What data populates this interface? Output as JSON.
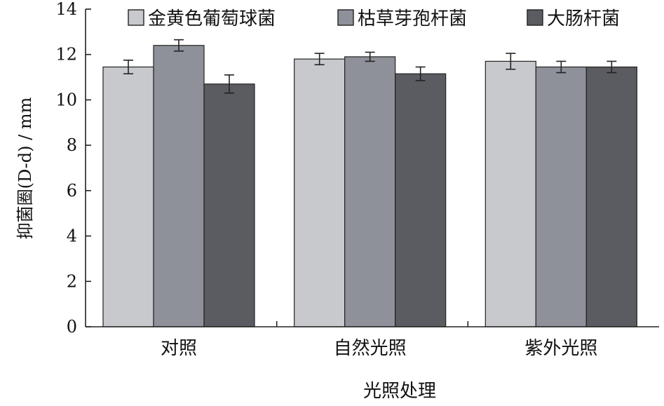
{
  "chart_data": {
    "type": "bar",
    "title": "",
    "xlabel": "光照处理",
    "ylabel": "抑菌圈(D-d) / mm",
    "ylim": [
      0,
      14
    ],
    "yticks": [
      0,
      2,
      4,
      6,
      8,
      10,
      12,
      14
    ],
    "categories": [
      "对照",
      "自然光照",
      "紫外光照"
    ],
    "legend_position": "top",
    "grid": false,
    "series": [
      {
        "name": "金黄色葡萄球菌",
        "color": "#c8c9cd",
        "values": [
          11.45,
          11.8,
          11.7
        ],
        "errors": [
          0.3,
          0.25,
          0.35
        ]
      },
      {
        "name": "枯草芽孢杆菌",
        "color": "#8e9199",
        "values": [
          12.4,
          11.9,
          11.45
        ],
        "errors": [
          0.25,
          0.2,
          0.25
        ]
      },
      {
        "name": "大肠杆菌",
        "color": "#5b5c61",
        "values": [
          10.7,
          11.15,
          11.45
        ],
        "errors": [
          0.4,
          0.3,
          0.25
        ]
      }
    ]
  }
}
